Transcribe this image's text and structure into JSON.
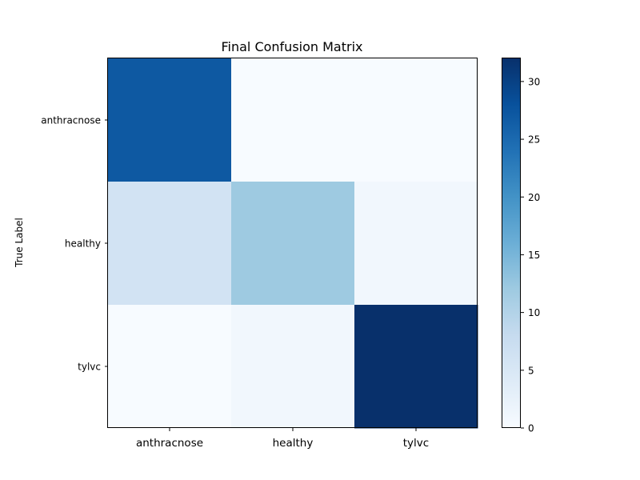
{
  "chart_data": {
    "type": "heatmap",
    "title": "Final Confusion Matrix",
    "xlabel": "",
    "ylabel": "True Label",
    "x_categories": [
      "anthracnose",
      "healthy",
      "tylvc"
    ],
    "y_categories": [
      "anthracnose",
      "healthy",
      "tylvc"
    ],
    "values": [
      [
        27,
        0,
        0
      ],
      [
        6,
        12,
        1
      ],
      [
        0,
        1,
        32
      ]
    ],
    "colormap": "Blues",
    "colorbar": {
      "min": 0,
      "max": 32,
      "ticks": [
        0,
        5,
        10,
        15,
        20,
        25,
        30
      ]
    },
    "grid": false
  }
}
